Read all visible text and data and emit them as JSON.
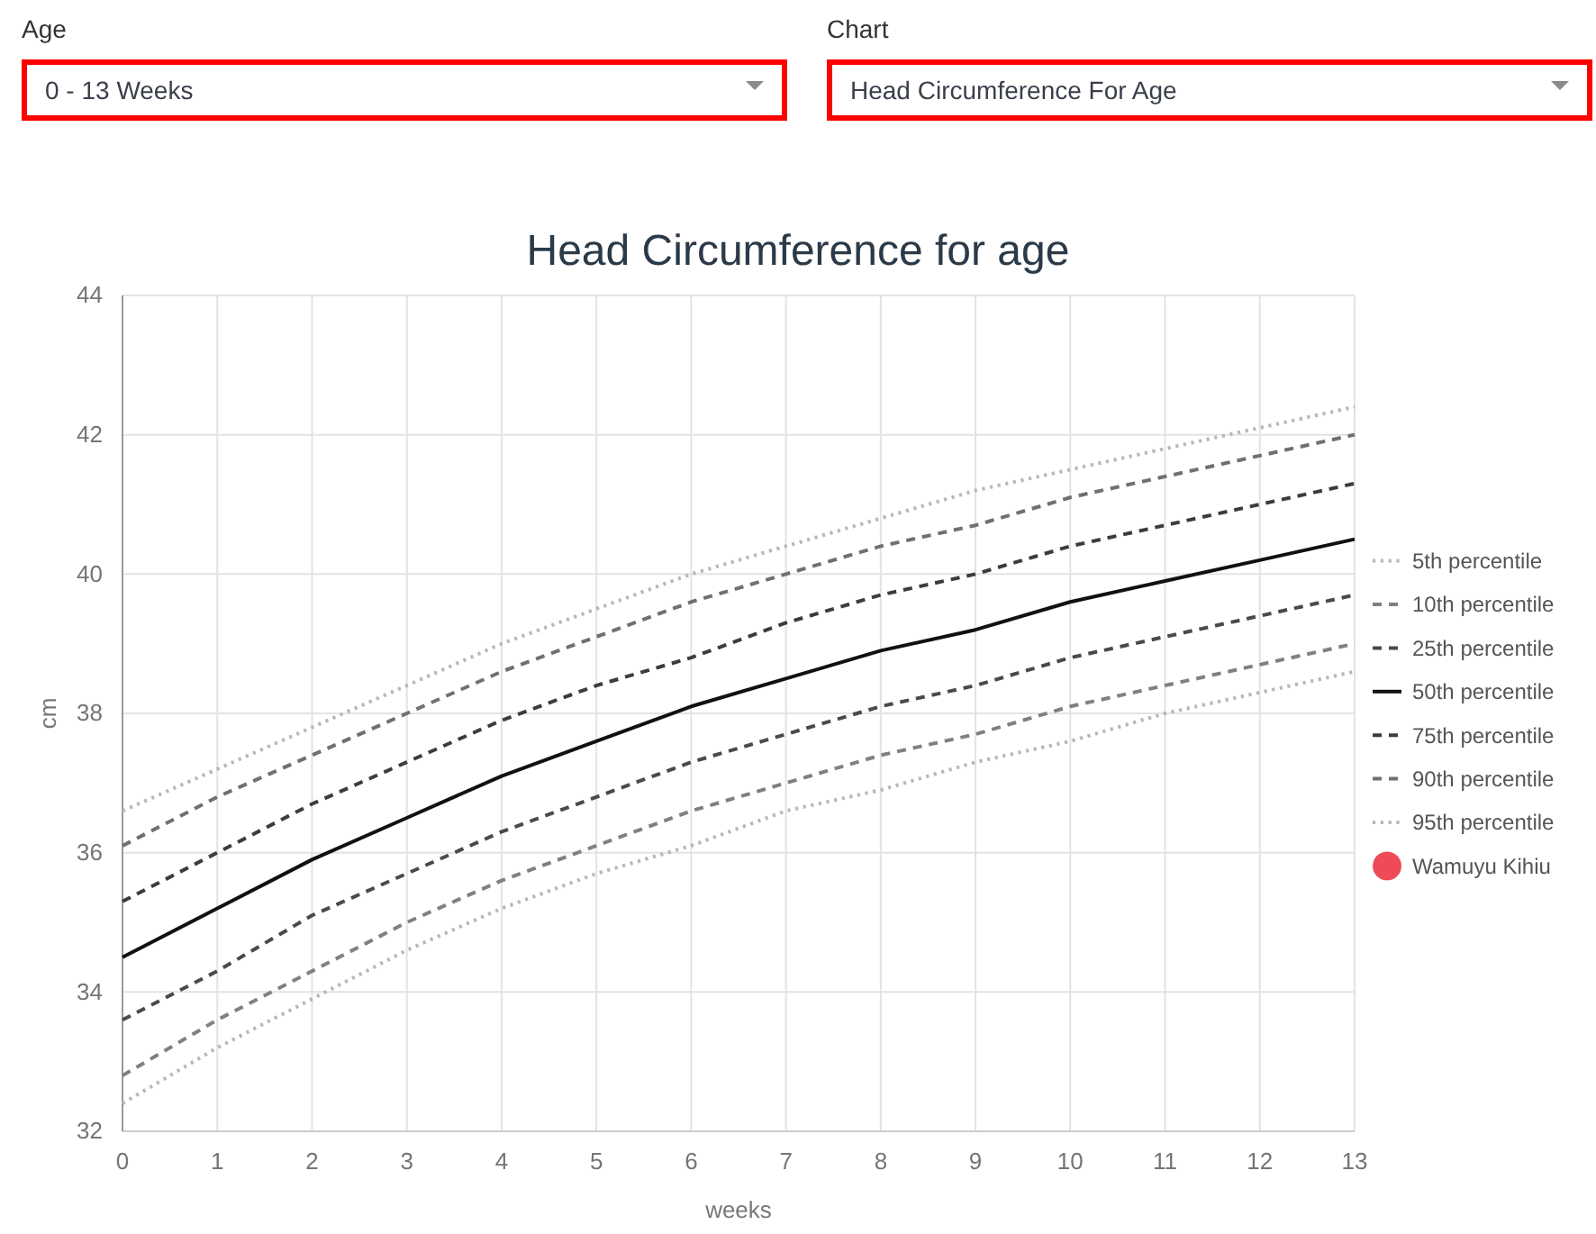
{
  "chart_data": {
    "type": "line",
    "title": "Head Circumference for age",
    "xlabel": "weeks",
    "ylabel": "cm",
    "annotations": [
      "Age",
      "0 - 13 Weeks",
      "Chart",
      "Head Circumference For Age"
    ],
    "x": [
      0,
      1,
      2,
      3,
      4,
      5,
      6,
      7,
      8,
      9,
      10,
      11,
      12,
      13
    ],
    "xlim": [
      0,
      13
    ],
    "xticks": [
      0,
      1,
      2,
      3,
      4,
      5,
      6,
      7,
      8,
      9,
      10,
      11,
      12,
      13
    ],
    "ylim": [
      32,
      44
    ],
    "yticks": [
      32,
      34,
      36,
      38,
      40,
      42,
      44
    ],
    "grid": true,
    "legend": "right",
    "series": [
      {
        "name": "5th percentile",
        "color": "#b8b8b8",
        "line_style": "dotted",
        "values": [
          32.4,
          33.2,
          33.9,
          34.6,
          35.2,
          35.7,
          36.1,
          36.6,
          36.9,
          37.3,
          37.6,
          38.0,
          38.3,
          38.6
        ]
      },
      {
        "name": "10th percentile",
        "color": "#808080",
        "line_style": "dashed",
        "values": [
          32.8,
          33.6,
          34.3,
          35.0,
          35.6,
          36.1,
          36.6,
          37.0,
          37.4,
          37.7,
          38.1,
          38.4,
          38.7,
          39.0
        ]
      },
      {
        "name": "25th percentile",
        "color": "#4a4a4a",
        "line_style": "dashed",
        "values": [
          33.6,
          34.3,
          35.1,
          35.7,
          36.3,
          36.8,
          37.3,
          37.7,
          38.1,
          38.4,
          38.8,
          39.1,
          39.4,
          39.7
        ]
      },
      {
        "name": "50th percentile",
        "color": "#111111",
        "line_style": "solid",
        "values": [
          34.5,
          35.2,
          35.9,
          36.5,
          37.1,
          37.6,
          38.1,
          38.5,
          38.9,
          39.2,
          39.6,
          39.9,
          40.2,
          40.5
        ]
      },
      {
        "name": "75th percentile",
        "color": "#3c3c3c",
        "line_style": "dashed",
        "values": [
          35.3,
          36.0,
          36.7,
          37.3,
          37.9,
          38.4,
          38.8,
          39.3,
          39.7,
          40.0,
          40.4,
          40.7,
          41.0,
          41.3
        ]
      },
      {
        "name": "90th percentile",
        "color": "#707070",
        "line_style": "dashed",
        "values": [
          36.1,
          36.8,
          37.4,
          38.0,
          38.6,
          39.1,
          39.6,
          40.0,
          40.4,
          40.7,
          41.1,
          41.4,
          41.7,
          42.0
        ]
      },
      {
        "name": "95th percentile",
        "color": "#b8b8b8",
        "line_style": "dotted",
        "values": [
          36.6,
          37.2,
          37.8,
          38.4,
          39.0,
          39.5,
          40.0,
          40.4,
          40.8,
          41.2,
          41.5,
          41.8,
          42.1,
          42.4
        ]
      },
      {
        "name": "Wamuyu Kihiu",
        "type": "scatter",
        "marker": "circle",
        "color": "#ee4b57",
        "values": [
          null,
          null,
          null,
          null,
          null,
          null,
          null,
          null,
          null,
          null,
          null,
          null,
          null,
          null
        ]
      }
    ]
  }
}
